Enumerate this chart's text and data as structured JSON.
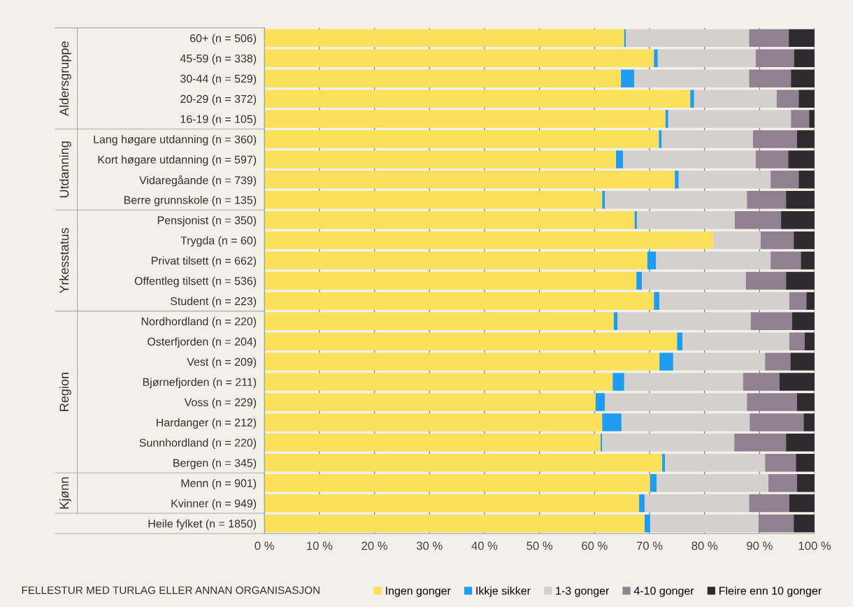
{
  "chart_data": {
    "type": "bar",
    "orientation": "horizontal",
    "stacked": true,
    "title": "FELLESTUR MED TURLAG ELLER ANNAN ORGANISASJON",
    "categories": [
      "60+ (n = 506)",
      "45-59 (n = 338)",
      "30-44 (n = 529)",
      "20-29 (n = 372)",
      "16-19 (n = 105)",
      "Lang høgare utdanning (n = 360)",
      "Kort høgare utdanning (n = 597)",
      "Vidaregåande (n = 739)",
      "Berre grunnskole (n = 135)",
      "Pensjonist (n = 350)",
      "Trygda (n = 60)",
      "Privat tilsett (n = 662)",
      "Offentleg tilsett (n = 536)",
      "Student (n = 223)",
      "Nordhordland (n = 220)",
      "Osterfjorden (n = 204)",
      "Vest (n = 209)",
      "Bjørnefjorden (n = 211)",
      "Voss (n = 229)",
      "Hardanger (n = 212)",
      "Sunnhordland (n = 220)",
      "Bergen (n = 345)",
      "Menn (n = 901)",
      "Kvinner (n = 949)",
      "Heile fylket (n = 1850)"
    ],
    "series": [
      {
        "name": "Ingen gonger",
        "color": "#fde05a",
        "values": [
          65.4,
          70.8,
          64.8,
          77.4,
          72.9,
          71.7,
          63.9,
          74.6,
          61.4,
          67.3,
          81.6,
          69.6,
          67.6,
          70.8,
          63.5,
          75.0,
          71.8,
          63.3,
          60.2,
          61.4,
          61.1,
          72.3,
          70.1,
          68.1,
          69.1
        ]
      },
      {
        "name": "Ikkje sikker",
        "color": "#1e9df0",
        "values": [
          0.3,
          0.7,
          2.4,
          0.7,
          0.5,
          0.5,
          1.3,
          0.7,
          0.5,
          0.4,
          0,
          1.6,
          1.0,
          1.0,
          0.7,
          1.0,
          2.5,
          2.1,
          1.7,
          3.5,
          0.3,
          0.5,
          1.2,
          1.0,
          1.0
        ]
      },
      {
        "name": "1-3 gonger",
        "color": "#d4d0cd",
        "values": [
          22.4,
          17.8,
          20.9,
          15.0,
          22.3,
          16.6,
          24.1,
          16.7,
          25.8,
          17.8,
          8.6,
          20.8,
          18.9,
          23.6,
          24.2,
          19.4,
          16.7,
          21.6,
          25.8,
          23.3,
          24.0,
          18.2,
          20.3,
          19.0,
          19.7
        ]
      },
      {
        "name": "4-10 gonger",
        "color": "#8f8190",
        "values": [
          7.2,
          7.0,
          7.6,
          4.0,
          3.3,
          8.0,
          5.9,
          5.1,
          7.1,
          8.4,
          6.0,
          5.5,
          7.3,
          3.1,
          7.5,
          2.8,
          4.6,
          6.6,
          9.1,
          9.8,
          9.4,
          5.6,
          5.2,
          7.3,
          6.4
        ]
      },
      {
        "name": "Fleire enn 10 gonger",
        "color": "#2e2a2f",
        "values": [
          4.7,
          3.7,
          4.3,
          2.9,
          1.0,
          3.2,
          4.8,
          2.9,
          5.2,
          6.1,
          3.8,
          2.5,
          5.2,
          1.5,
          4.1,
          1.8,
          4.4,
          6.4,
          3.2,
          2.0,
          5.2,
          3.4,
          3.2,
          4.6,
          3.8
        ]
      }
    ],
    "annotations": [
      "Aldersgruppe",
      "Utdanning",
      "Yrkesstatus",
      "Region",
      "Kjønn"
    ],
    "xlim": [
      0,
      100
    ],
    "xticks": [
      {
        "value": 0,
        "label": "0 %"
      },
      {
        "value": 10,
        "label": "10 %"
      },
      {
        "value": 20,
        "label": "20 %"
      },
      {
        "value": 30,
        "label": "30 %"
      },
      {
        "value": 40,
        "label": "40 %"
      },
      {
        "value": 50,
        "label": "50 %"
      },
      {
        "value": 60,
        "label": "60 %"
      },
      {
        "value": 70,
        "label": "70 %"
      },
      {
        "value": 80,
        "label": "80 %"
      },
      {
        "value": 90,
        "label": "90 %"
      },
      {
        "value": 100,
        "label": "100 %"
      }
    ],
    "grid": "x",
    "legend": "bottom right"
  }
}
